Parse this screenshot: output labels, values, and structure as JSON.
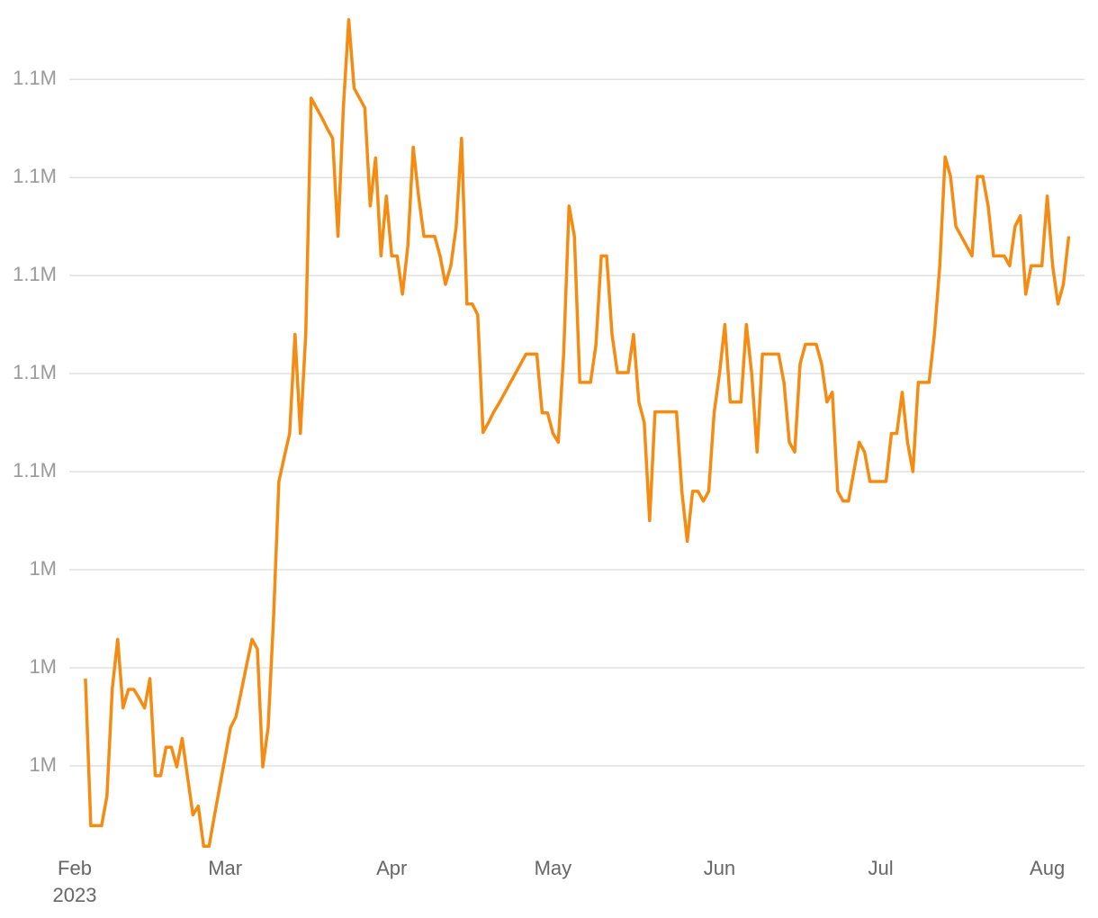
{
  "chart_data": {
    "type": "line",
    "categories": [
      "Feb",
      null,
      null,
      null,
      null,
      null,
      null,
      null,
      null,
      null,
      null,
      null,
      null,
      null,
      null,
      null,
      null,
      null,
      null,
      null,
      null,
      null,
      null,
      null,
      null,
      null,
      null,
      null,
      "Mar",
      null,
      null,
      null,
      null,
      null,
      null,
      null,
      null,
      null,
      null,
      null,
      null,
      null,
      null,
      null,
      null,
      null,
      null,
      null,
      null,
      null,
      null,
      null,
      null,
      null,
      null,
      null,
      null,
      null,
      null,
      "Apr",
      null,
      null,
      null,
      null,
      null,
      null,
      null,
      null,
      null,
      null,
      null,
      null,
      null,
      null,
      null,
      null,
      null,
      null,
      null,
      null,
      null,
      null,
      null,
      null,
      null,
      null,
      null,
      null,
      null,
      "May",
      null,
      null,
      null,
      null,
      null,
      null,
      null,
      null,
      null,
      null,
      null,
      null,
      null,
      null,
      null,
      null,
      null,
      null,
      null,
      null,
      null,
      null,
      null,
      null,
      null,
      null,
      null,
      null,
      null,
      null,
      "Jun",
      null,
      null,
      null,
      null,
      null,
      null,
      null,
      null,
      null,
      null,
      null,
      null,
      null,
      null,
      null,
      null,
      null,
      null,
      null,
      null,
      null,
      null,
      null,
      null,
      null,
      null,
      null,
      null,
      null,
      "Jul",
      null,
      null,
      null,
      null,
      null,
      null,
      null,
      null,
      null,
      null,
      null,
      null,
      null,
      null,
      null,
      null,
      null,
      null,
      null,
      null,
      null,
      null,
      null,
      null,
      null,
      null,
      null,
      null,
      null,
      null,
      "Aug",
      null,
      null,
      null,
      null
    ],
    "x_year_label": "2023",
    "values": [
      null,
      null,
      1028900,
      1013900,
      1013900,
      1013900,
      1016900,
      1027900,
      1032900,
      1025900,
      1027800,
      1027800,
      1026900,
      1025900,
      1028900,
      1019000,
      1019000,
      1021900,
      1021900,
      1019900,
      1022800,
      1018900,
      1015000,
      1015900,
      1011800,
      1011800,
      1014900,
      1017900,
      1020900,
      1023900,
      1025000,
      1027600,
      1030300,
      1032900,
      1031900,
      1019900,
      1023900,
      1035000,
      1049000,
      1051500,
      1053900,
      1064000,
      1053900,
      1064000,
      1088100,
      1087100,
      1086100,
      1085000,
      1084000,
      1074000,
      1087100,
      1096100,
      1089100,
      1088100,
      1087100,
      1077100,
      1082000,
      1072000,
      1078100,
      1072000,
      1072000,
      1068100,
      1073000,
      1083100,
      1078100,
      1074000,
      1074000,
      1074000,
      1072000,
      1069100,
      1071000,
      1075000,
      1084000,
      1067100,
      1067100,
      1066000,
      1054000,
      1055000,
      1056100,
      1057000,
      1058000,
      1059000,
      1060000,
      1061000,
      1062000,
      1062000,
      1062000,
      1056000,
      1056000,
      1053900,
      1053000,
      1062000,
      1077100,
      1074000,
      1059100,
      1059100,
      1059100,
      1062900,
      1072000,
      1072000,
      1064000,
      1060100,
      1060100,
      1060100,
      1064000,
      1057100,
      1055000,
      1045000,
      1056100,
      1056100,
      1056100,
      1056100,
      1056100,
      1048000,
      1042900,
      1048000,
      1048000,
      1047000,
      1048000,
      1056000,
      1060000,
      1065000,
      1057100,
      1057100,
      1057100,
      1065000,
      1060000,
      1052000,
      1062000,
      1062000,
      1062000,
      1062000,
      1059100,
      1053000,
      1052000,
      1061000,
      1063000,
      1063000,
      1063000,
      1061000,
      1057100,
      1058100,
      1048000,
      1047000,
      1047000,
      1050000,
      1053000,
      1052000,
      1049000,
      1049000,
      1049000,
      1049000,
      1053900,
      1053900,
      1058100,
      1053000,
      1050000,
      1059100,
      1059100,
      1059100,
      1064000,
      1071000,
      1082100,
      1080100,
      1075000,
      1074000,
      1073000,
      1072000,
      1080100,
      1080100,
      1077100,
      1072000,
      1072000,
      1072000,
      1071000,
      1075000,
      1076100,
      1068100,
      1071000,
      1071000,
      1071000,
      1078100,
      1071000,
      1067100,
      1069100,
      1074000
    ],
    "color": "#f68b12",
    "ylim": [
      1011000,
      1097000
    ],
    "yticks": [
      {
        "value": 1020000,
        "label": "1M"
      },
      {
        "value": 1030000,
        "label": "1M"
      },
      {
        "value": 1040000,
        "label": "1M"
      },
      {
        "value": 1050000,
        "label": "1.1M"
      },
      {
        "value": 1060000,
        "label": "1.1M"
      },
      {
        "value": 1070000,
        "label": "1.1M"
      },
      {
        "value": 1080000,
        "label": "1.1M"
      },
      {
        "value": 1090000,
        "label": "1.1M"
      }
    ],
    "grid": true
  }
}
